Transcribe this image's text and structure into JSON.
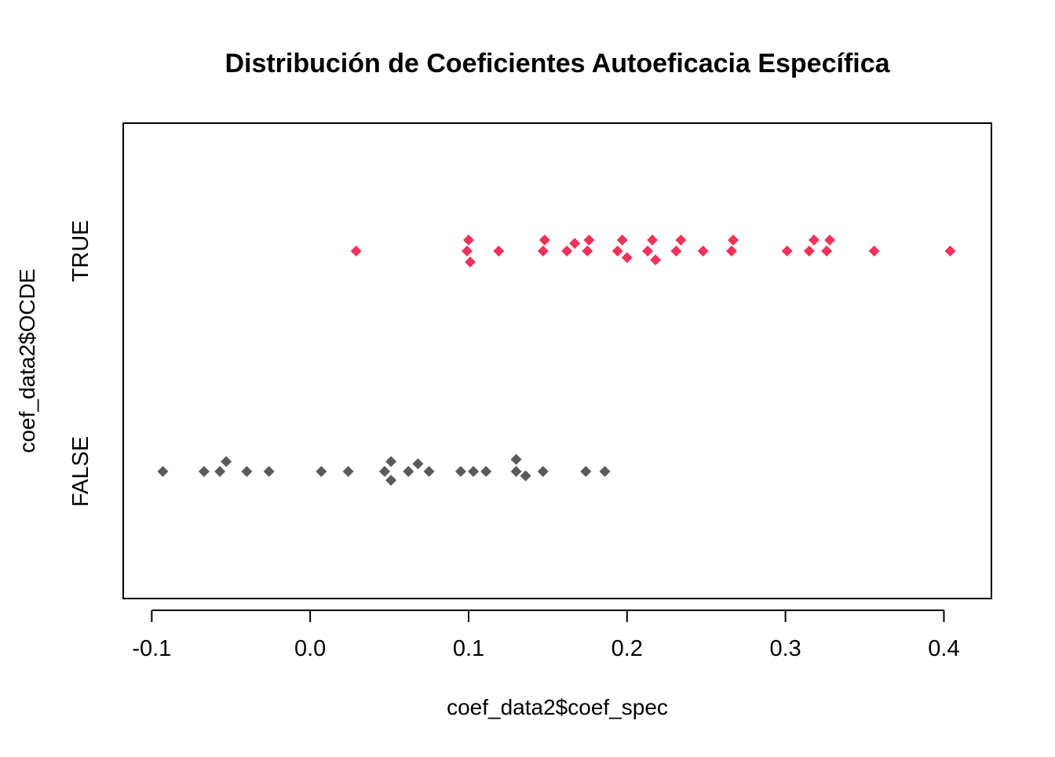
{
  "chart_data": {
    "type": "scatter",
    "title": "Distribución de Coeficientes Autoeficacia Específica",
    "xlabel": "coef_data2$coef_spec",
    "ylabel": "coef_data2$OCDE",
    "xlim": [
      -0.118,
      0.43
    ],
    "x_ticks": [
      -0.1,
      0.0,
      0.1,
      0.2,
      0.3,
      0.4
    ],
    "x_tick_labels": [
      "-0.1",
      "0.0",
      "0.1",
      "0.2",
      "0.3",
      "0.4"
    ],
    "categories": [
      "FALSE",
      "TRUE"
    ],
    "grid": false,
    "legend": "none",
    "series": [
      {
        "category": "TRUE",
        "color": "#f0325a",
        "marker": "diamond",
        "points": [
          {
            "x": 0.029,
            "y": 0.0
          },
          {
            "x": 0.1,
            "y": 0.05
          },
          {
            "x": 0.099,
            "y": 0.0
          },
          {
            "x": 0.101,
            "y": -0.05
          },
          {
            "x": 0.119,
            "y": 0.0
          },
          {
            "x": 0.148,
            "y": 0.05
          },
          {
            "x": 0.147,
            "y": 0.0
          },
          {
            "x": 0.162,
            "y": 0.0
          },
          {
            "x": 0.167,
            "y": 0.035
          },
          {
            "x": 0.176,
            "y": 0.05
          },
          {
            "x": 0.175,
            "y": 0.0
          },
          {
            "x": 0.197,
            "y": 0.05
          },
          {
            "x": 0.194,
            "y": 0.0
          },
          {
            "x": 0.2,
            "y": -0.03
          },
          {
            "x": 0.216,
            "y": 0.05
          },
          {
            "x": 0.213,
            "y": 0.0
          },
          {
            "x": 0.218,
            "y": -0.04
          },
          {
            "x": 0.234,
            "y": 0.05
          },
          {
            "x": 0.231,
            "y": 0.0
          },
          {
            "x": 0.248,
            "y": 0.0
          },
          {
            "x": 0.267,
            "y": 0.05
          },
          {
            "x": 0.266,
            "y": 0.0
          },
          {
            "x": 0.301,
            "y": 0.0
          },
          {
            "x": 0.318,
            "y": 0.05
          },
          {
            "x": 0.315,
            "y": 0.0
          },
          {
            "x": 0.328,
            "y": 0.05
          },
          {
            "x": 0.326,
            "y": 0.0
          },
          {
            "x": 0.356,
            "y": 0.0
          },
          {
            "x": 0.404,
            "y": 0.0
          }
        ]
      },
      {
        "category": "FALSE",
        "color": "#5a5a5a",
        "marker": "diamond",
        "points": [
          {
            "x": -0.093,
            "y": 0.0
          },
          {
            "x": -0.067,
            "y": 0.0
          },
          {
            "x": -0.057,
            "y": 0.0
          },
          {
            "x": -0.053,
            "y": 0.045
          },
          {
            "x": -0.04,
            "y": 0.0
          },
          {
            "x": -0.026,
            "y": 0.0
          },
          {
            "x": 0.007,
            "y": 0.0
          },
          {
            "x": 0.024,
            "y": 0.0
          },
          {
            "x": 0.047,
            "y": 0.0
          },
          {
            "x": 0.051,
            "y": 0.045
          },
          {
            "x": 0.051,
            "y": -0.04
          },
          {
            "x": 0.062,
            "y": 0.0
          },
          {
            "x": 0.068,
            "y": 0.035
          },
          {
            "x": 0.075,
            "y": 0.0
          },
          {
            "x": 0.095,
            "y": 0.0
          },
          {
            "x": 0.103,
            "y": 0.0
          },
          {
            "x": 0.111,
            "y": 0.0
          },
          {
            "x": 0.13,
            "y": 0.055
          },
          {
            "x": 0.13,
            "y": 0.0
          },
          {
            "x": 0.136,
            "y": -0.02
          },
          {
            "x": 0.147,
            "y": 0.0
          },
          {
            "x": 0.174,
            "y": 0.0
          },
          {
            "x": 0.186,
            "y": 0.0
          }
        ]
      }
    ]
  }
}
